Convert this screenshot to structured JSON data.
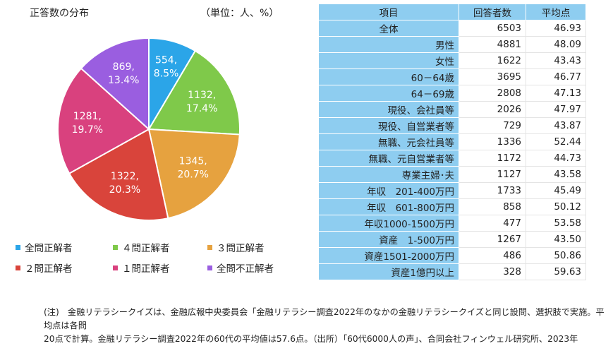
{
  "header": {
    "title": "正答数の分布",
    "unit": "（単位：人、%）"
  },
  "chart_data": {
    "type": "pie",
    "title": "正答数の分布",
    "unit": "（単位：人、%）",
    "categories": [
      "全問正解者",
      "４問正解者",
      "３問正解者",
      "２問正解者",
      "１問正解者",
      "全問不正解者"
    ],
    "values": [
      554,
      1132,
      1345,
      1322,
      1281,
      869
    ],
    "percents": [
      8.5,
      17.4,
      20.7,
      20.3,
      19.7,
      13.4
    ],
    "slice_labels": [
      [
        "554,",
        "8.5%"
      ],
      [
        "1132,",
        "17.4%"
      ],
      [
        "1345,",
        "20.7%"
      ],
      [
        "1322,",
        "20.3%"
      ],
      [
        "1281,",
        "19.7%"
      ],
      [
        "869,",
        "13.4%"
      ]
    ],
    "colors": [
      "#2ba5e8",
      "#7fc94a",
      "#e6a23f",
      "#d9443b",
      "#d9417e",
      "#9a5ee0"
    ],
    "legend_position": "bottom"
  },
  "legend": [
    {
      "label": "全問正解者",
      "color": "#2ba5e8"
    },
    {
      "label": "４問正解者",
      "color": "#7fc94a"
    },
    {
      "label": "３問正解者",
      "color": "#e6a23f"
    },
    {
      "label": "２問正解者",
      "color": "#d9443b"
    },
    {
      "label": "１問正解者",
      "color": "#d9417e"
    },
    {
      "label": "全問不正解者",
      "color": "#9a5ee0"
    }
  ],
  "table": {
    "headers": [
      "項目",
      "回答者数",
      "平均点"
    ],
    "rows": [
      {
        "label": "全体",
        "count": "6503",
        "avg": "46.93",
        "align": "center"
      },
      {
        "label": "男性",
        "count": "4881",
        "avg": "48.09",
        "align": "right"
      },
      {
        "label": "女性",
        "count": "1622",
        "avg": "43.43",
        "align": "right"
      },
      {
        "label": "60－64歳",
        "count": "3695",
        "avg": "46.77",
        "align": "right"
      },
      {
        "label": "64－69歳",
        "count": "2808",
        "avg": "47.13",
        "align": "right"
      },
      {
        "label": "現役、会社員等",
        "count": "2026",
        "avg": "47.97",
        "align": "right"
      },
      {
        "label": "現役、自営業者等",
        "count": "729",
        "avg": "43.87",
        "align": "right"
      },
      {
        "label": "無職、元会社員等",
        "count": "1336",
        "avg": "52.44",
        "align": "right"
      },
      {
        "label": "無職、元自営業者等",
        "count": "1172",
        "avg": "44.73",
        "align": "right"
      },
      {
        "label": "専業主婦･夫",
        "count": "1127",
        "avg": "43.58",
        "align": "right"
      },
      {
        "label": "年収　201-400万円",
        "count": "1733",
        "avg": "45.49",
        "align": "right"
      },
      {
        "label": "年収　601-800万円",
        "count": "858",
        "avg": "50.12",
        "align": "right"
      },
      {
        "label": "年収1000-1500万円",
        "count": "477",
        "avg": "53.58",
        "align": "right"
      },
      {
        "label": "資産　1-500万円",
        "count": "1267",
        "avg": "43.50",
        "align": "right"
      },
      {
        "label": "資産1501-2000万円",
        "count": "486",
        "avg": "50.86",
        "align": "right"
      },
      {
        "label": "資産1億円以上",
        "count": "328",
        "avg": "59.63",
        "align": "right"
      }
    ],
    "header_color": "#8ecdf0"
  },
  "note": {
    "line1": "(注)　金融リテラシークイズは、金融広報中央委員会「金融リテラシー調査2022年のなかの金融リテラシークイズと同じ設問、選択肢で実施。平均点は各問",
    "line2": "20点で計算。金融リテラシー調査2022年の60代の平均値は57.6点。（出所）「60代6000人の声」、合同会社フィンウェル研究所、2023年"
  }
}
